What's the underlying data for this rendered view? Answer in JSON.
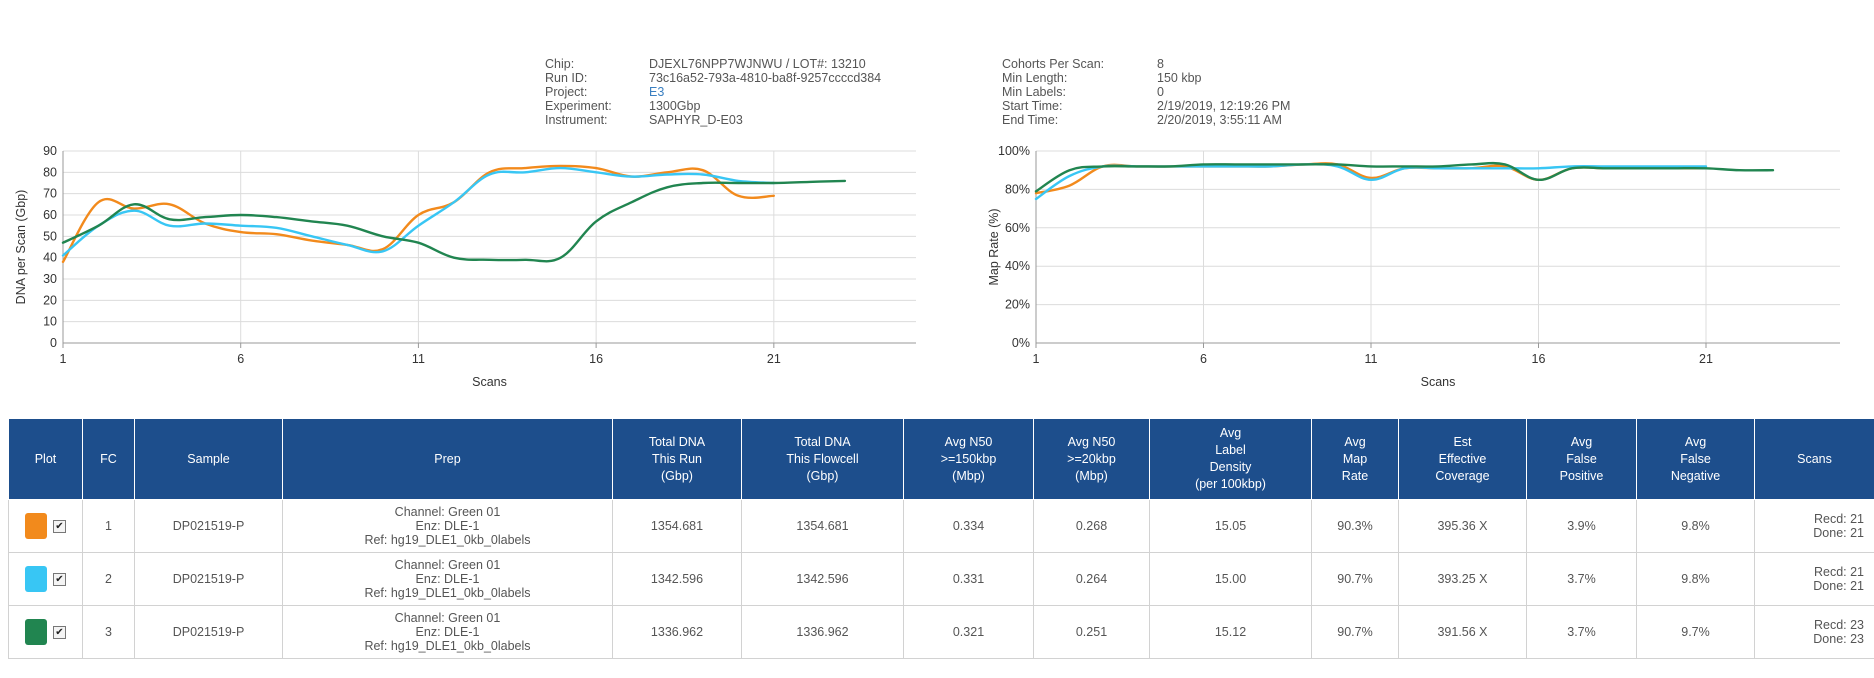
{
  "run_info_left": [
    {
      "label": "Chip:",
      "value": "DJEXL76NPP7WJNWU / LOT#: 13210"
    },
    {
      "label": "Run ID:",
      "value": "73c16a52-793a-4810-ba8f-9257ccccd384"
    },
    {
      "label": "Project:",
      "value": "E3",
      "link": true
    },
    {
      "label": "Experiment:",
      "value": "1300Gbp"
    },
    {
      "label": "Instrument:",
      "value": "SAPHYR_D-E03"
    }
  ],
  "run_info_right": [
    {
      "label": "Cohorts Per Scan:",
      "value": "8"
    },
    {
      "label": "Min Length:",
      "value": "150 kbp"
    },
    {
      "label": "Min Labels:",
      "value": "0"
    },
    {
      "label": "Start Time:",
      "value": "2/19/2019, 12:19:26 PM"
    },
    {
      "label": "End Time:",
      "value": "2/20/2019, 3:55:11 AM"
    }
  ],
  "colors": {
    "fc1": "#f28a1c",
    "fc2": "#38c6f4",
    "fc3": "#218550",
    "header_bg": "#1d4e8c"
  },
  "chart_data": [
    {
      "type": "line",
      "xlabel": "Scans",
      "ylabel": "DNA per Scan (Gbp)",
      "xlim": [
        1,
        25
      ],
      "ylim": [
        0,
        90
      ],
      "x_ticks": [
        1,
        6,
        11,
        16,
        21
      ],
      "y_ticks": [
        0,
        10,
        20,
        30,
        40,
        50,
        60,
        70,
        80,
        90
      ],
      "grid": true,
      "series": [
        {
          "color": "#f28a1c",
          "x": [
            1,
            2,
            3,
            4,
            5,
            6,
            7,
            8,
            9,
            10,
            11,
            12,
            13,
            14,
            15,
            16,
            17,
            18,
            19,
            20,
            21
          ],
          "y": [
            38,
            66,
            63,
            65,
            56,
            52,
            51,
            48,
            46,
            44,
            60,
            66,
            80,
            82,
            83,
            82,
            78,
            80,
            81,
            69,
            69
          ]
        },
        {
          "color": "#38c6f4",
          "x": [
            1,
            2,
            3,
            4,
            5,
            6,
            7,
            8,
            9,
            10,
            11,
            12,
            13,
            14,
            15,
            16,
            17,
            18,
            19,
            20,
            21
          ],
          "y": [
            41,
            55,
            62,
            55,
            56,
            55,
            54,
            50,
            46,
            43,
            55,
            66,
            79,
            80,
            82,
            80,
            78,
            79,
            79,
            76,
            75
          ]
        },
        {
          "color": "#218550",
          "x": [
            1,
            2,
            3,
            4,
            5,
            6,
            7,
            8,
            9,
            10,
            11,
            12,
            13,
            14,
            15,
            16,
            17,
            18,
            19,
            20,
            21,
            22,
            23
          ],
          "y": [
            47,
            55,
            65,
            58,
            59,
            60,
            59,
            57,
            55,
            50,
            47,
            40,
            39,
            39,
            40,
            57,
            66,
            73,
            75,
            75,
            75,
            75.5,
            76
          ]
        }
      ]
    },
    {
      "type": "line",
      "xlabel": "Scans",
      "ylabel": "Map Rate (%)",
      "xlim": [
        1,
        25
      ],
      "ylim": [
        0,
        100
      ],
      "x_ticks": [
        1,
        6,
        11,
        16,
        21
      ],
      "y_ticks": [
        0,
        20,
        40,
        60,
        80,
        100
      ],
      "y_tick_labels": [
        "0%",
        "20%",
        "40%",
        "60%",
        "80%",
        "100%"
      ],
      "grid": true,
      "series": [
        {
          "color": "#f28a1c",
          "x": [
            1,
            2,
            3,
            4,
            5,
            6,
            7,
            8,
            9,
            10,
            11,
            12,
            13,
            14,
            15,
            16,
            17,
            18,
            19,
            20,
            21
          ],
          "y": [
            78,
            82,
            92,
            92,
            92,
            92,
            92,
            92,
            93,
            93,
            86,
            91,
            91,
            91,
            92,
            85,
            91,
            91,
            91,
            91,
            91
          ]
        },
        {
          "color": "#38c6f4",
          "x": [
            1,
            2,
            3,
            4,
            5,
            6,
            7,
            8,
            9,
            10,
            11,
            12,
            13,
            14,
            15,
            16,
            17,
            18,
            19,
            20,
            21
          ],
          "y": [
            75,
            87,
            92,
            92,
            92,
            92,
            92,
            92,
            93,
            92,
            85,
            91,
            91,
            91,
            91,
            91,
            92,
            92,
            92,
            92,
            92
          ]
        },
        {
          "color": "#218550",
          "x": [
            1,
            2,
            3,
            4,
            5,
            6,
            7,
            8,
            9,
            10,
            11,
            12,
            13,
            14,
            15,
            16,
            17,
            18,
            19,
            20,
            21,
            22,
            23
          ],
          "y": [
            79,
            90,
            92,
            92,
            92,
            93,
            93,
            93,
            93,
            93,
            92,
            92,
            92,
            93,
            93,
            85,
            91,
            91,
            91,
            91,
            91,
            90,
            90
          ]
        }
      ]
    }
  ],
  "table": {
    "headers": [
      [
        "Plot"
      ],
      [
        "FC"
      ],
      [
        "Sample"
      ],
      [
        "Prep"
      ],
      [
        "Total DNA",
        "This Run",
        "(Gbp)"
      ],
      [
        "Total DNA",
        "This Flowcell",
        "(Gbp)"
      ],
      [
        "Avg N50",
        ">=150kbp",
        "(Mbp)"
      ],
      [
        "Avg N50",
        ">=20kbp",
        "(Mbp)"
      ],
      [
        "Avg",
        "Label",
        "Density",
        "(per 100kbp)"
      ],
      [
        "Avg",
        "Map",
        "Rate"
      ],
      [
        "Est",
        "Effective",
        "Coverage"
      ],
      [
        "Avg",
        "False",
        "Positive"
      ],
      [
        "Avg",
        "False",
        "Negative"
      ],
      [
        "Scans"
      ]
    ],
    "rows": [
      {
        "color": "#f28a1c",
        "checked": "✔",
        "fc": "1",
        "sample": "DP021519-P",
        "prep": [
          "Channel: Green 01",
          "Enz: DLE-1",
          "Ref: hg19_DLE1_0kb_0labels"
        ],
        "total_run": "1354.681",
        "total_flowcell": "1354.681",
        "n50_150": "0.334",
        "n50_20": "0.268",
        "label_density": "15.05",
        "map_rate": "90.3%",
        "coverage": "395.36 X",
        "false_pos": "3.9%",
        "false_neg": "9.8%",
        "recd": "Recd: 21",
        "done": "Done: 21"
      },
      {
        "color": "#38c6f4",
        "checked": "✔",
        "fc": "2",
        "sample": "DP021519-P",
        "prep": [
          "Channel: Green 01",
          "Enz: DLE-1",
          "Ref: hg19_DLE1_0kb_0labels"
        ],
        "total_run": "1342.596",
        "total_flowcell": "1342.596",
        "n50_150": "0.331",
        "n50_20": "0.264",
        "label_density": "15.00",
        "map_rate": "90.7%",
        "coverage": "393.25 X",
        "false_pos": "3.7%",
        "false_neg": "9.8%",
        "recd": "Recd: 21",
        "done": "Done: 21"
      },
      {
        "color": "#218550",
        "checked": "✔",
        "fc": "3",
        "sample": "DP021519-P",
        "prep": [
          "Channel: Green 01",
          "Enz: DLE-1",
          "Ref: hg19_DLE1_0kb_0labels"
        ],
        "total_run": "1336.962",
        "total_flowcell": "1336.962",
        "n50_150": "0.321",
        "n50_20": "0.251",
        "label_density": "15.12",
        "map_rate": "90.7%",
        "coverage": "391.56 X",
        "false_pos": "3.7%",
        "false_neg": "9.7%",
        "recd": "Recd: 23",
        "done": "Done: 23"
      }
    ]
  }
}
